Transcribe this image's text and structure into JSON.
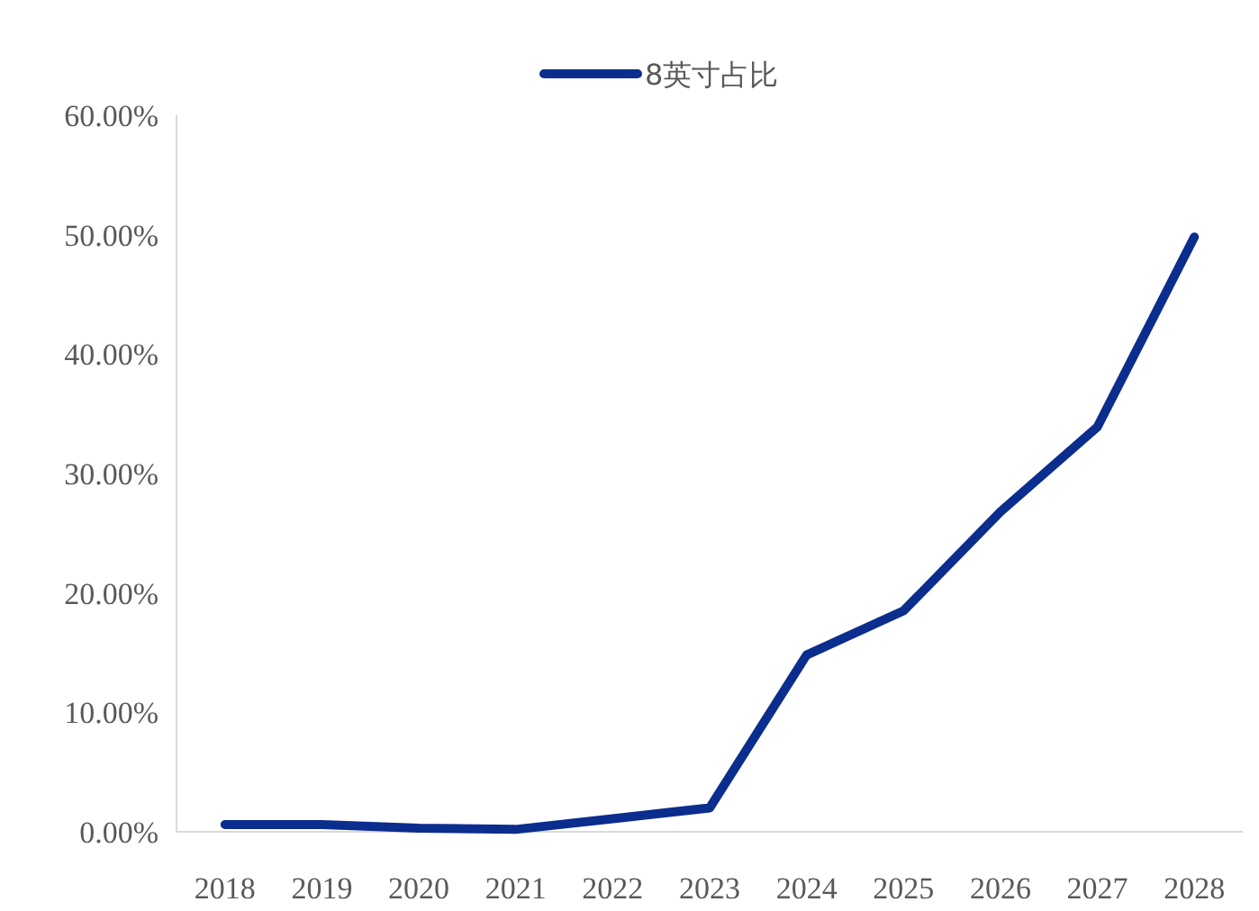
{
  "chart_data": {
    "type": "line",
    "categories": [
      "2018",
      "2019",
      "2020",
      "2021",
      "2022",
      "2023",
      "2024",
      "2025",
      "2026",
      "2027",
      "2028"
    ],
    "series": [
      {
        "name": "8英寸占比",
        "color": "#0b2d8e",
        "values": [
          0.6,
          0.6,
          0.3,
          0.2,
          1.1,
          2.0,
          14.8,
          18.5,
          26.8,
          33.9,
          49.8
        ]
      }
    ],
    "ylim": [
      0,
      60
    ],
    "yticks": [
      {
        "value": 0,
        "label": "0.00%"
      },
      {
        "value": 10,
        "label": "10.00%"
      },
      {
        "value": 20,
        "label": "20.00%"
      },
      {
        "value": 30,
        "label": "30.00%"
      },
      {
        "value": 40,
        "label": "40.00%"
      },
      {
        "value": 50,
        "label": "50.00%"
      },
      {
        "value": 60,
        "label": "60.00%"
      }
    ],
    "grid": false,
    "legend": "top",
    "marker": "none",
    "line_style": "solid"
  }
}
